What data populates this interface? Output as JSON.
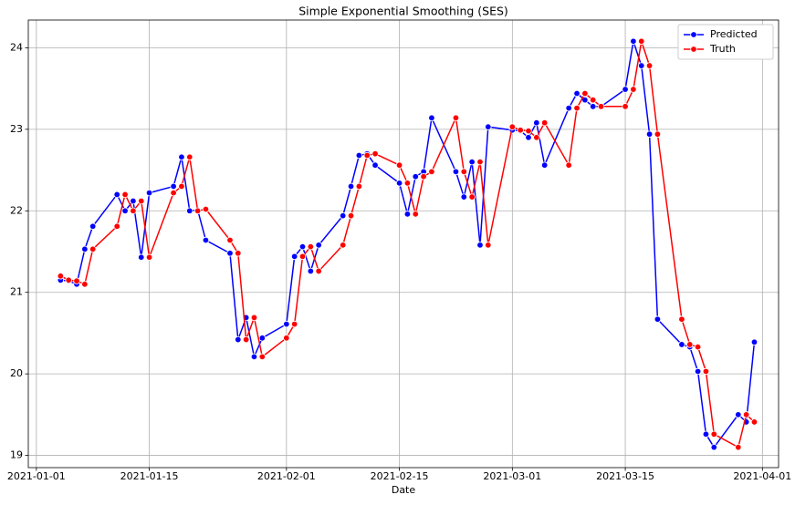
{
  "chart_data": {
    "type": "line",
    "title": "Simple Exponential Smoothing (SES)",
    "x_label": "Date",
    "x": [
      "2021-01-04",
      "2021-01-05",
      "2021-01-06",
      "2021-01-07",
      "2021-01-08",
      "2021-01-11",
      "2021-01-12",
      "2021-01-13",
      "2021-01-14",
      "2021-01-15",
      "2021-01-18",
      "2021-01-19",
      "2021-01-20",
      "2021-01-21",
      "2021-01-22",
      "2021-01-25",
      "2021-01-26",
      "2021-01-27",
      "2021-01-28",
      "2021-01-29",
      "2021-02-01",
      "2021-02-02",
      "2021-02-03",
      "2021-02-04",
      "2021-02-05",
      "2021-02-08",
      "2021-02-09",
      "2021-02-10",
      "2021-02-11",
      "2021-02-12",
      "2021-02-15",
      "2021-02-16",
      "2021-02-17",
      "2021-02-18",
      "2021-02-19",
      "2021-02-22",
      "2021-02-23",
      "2021-02-24",
      "2021-02-25",
      "2021-02-26",
      "2021-03-01",
      "2021-03-02",
      "2021-03-03",
      "2021-03-04",
      "2021-03-05",
      "2021-03-08",
      "2021-03-09",
      "2021-03-10",
      "2021-03-11",
      "2021-03-12",
      "2021-03-15",
      "2021-03-16",
      "2021-03-17",
      "2021-03-18",
      "2021-03-19",
      "2021-03-22",
      "2021-03-23",
      "2021-03-24",
      "2021-03-25",
      "2021-03-26",
      "2021-03-29",
      "2021-03-30",
      "2021-03-31"
    ],
    "series": [
      {
        "name": "Predicted",
        "color": "#0000ff",
        "values": [
          21.15,
          21.14,
          21.1,
          21.53,
          21.81,
          22.2,
          22.0,
          22.12,
          21.43,
          22.22,
          22.3,
          22.66,
          22.0,
          22.01,
          21.64,
          21.48,
          20.42,
          20.69,
          20.21,
          20.44,
          20.61,
          21.44,
          21.56,
          21.26,
          21.58,
          21.94,
          22.3,
          22.68,
          22.7,
          22.56,
          22.34,
          21.96,
          22.42,
          22.48,
          23.14,
          22.48,
          22.17,
          22.6,
          21.58,
          23.03,
          22.99,
          22.98,
          22.9,
          23.08,
          22.56,
          23.26,
          23.44,
          23.36,
          23.28,
          23.28,
          23.49,
          24.08,
          23.78,
          22.94,
          20.67,
          20.36,
          20.33,
          20.03,
          19.26,
          19.1,
          19.5,
          19.41,
          20.39
        ]
      },
      {
        "name": "Truth",
        "color": "#ff0000",
        "values": [
          21.2,
          21.15,
          21.14,
          21.1,
          21.53,
          21.81,
          22.2,
          22.0,
          22.12,
          21.43,
          22.22,
          22.3,
          22.66,
          22.0,
          22.02,
          21.64,
          21.48,
          20.42,
          20.69,
          20.21,
          20.44,
          20.61,
          21.44,
          21.56,
          21.26,
          21.58,
          21.94,
          22.3,
          22.68,
          22.7,
          22.56,
          22.34,
          21.96,
          22.42,
          22.48,
          23.14,
          22.48,
          22.17,
          22.6,
          21.58,
          23.03,
          22.99,
          22.98,
          22.9,
          23.08,
          22.56,
          23.26,
          23.44,
          23.36,
          23.28,
          23.28,
          23.49,
          24.08,
          23.78,
          22.94,
          20.67,
          20.36,
          20.33,
          20.03,
          19.26,
          19.1,
          19.5,
          19.41
        ]
      }
    ],
    "xlim": [
      "2020-12-31",
      "2021-04-03"
    ],
    "xticks": [
      "2021-01-01",
      "2021-01-15",
      "2021-02-01",
      "2021-02-15",
      "2021-03-01",
      "2021-03-15",
      "2021-04-01"
    ],
    "ylim": [
      18.85,
      24.34
    ],
    "yticks": [
      19,
      20,
      21,
      22,
      23,
      24
    ],
    "grid": true,
    "legend": "upper right"
  }
}
